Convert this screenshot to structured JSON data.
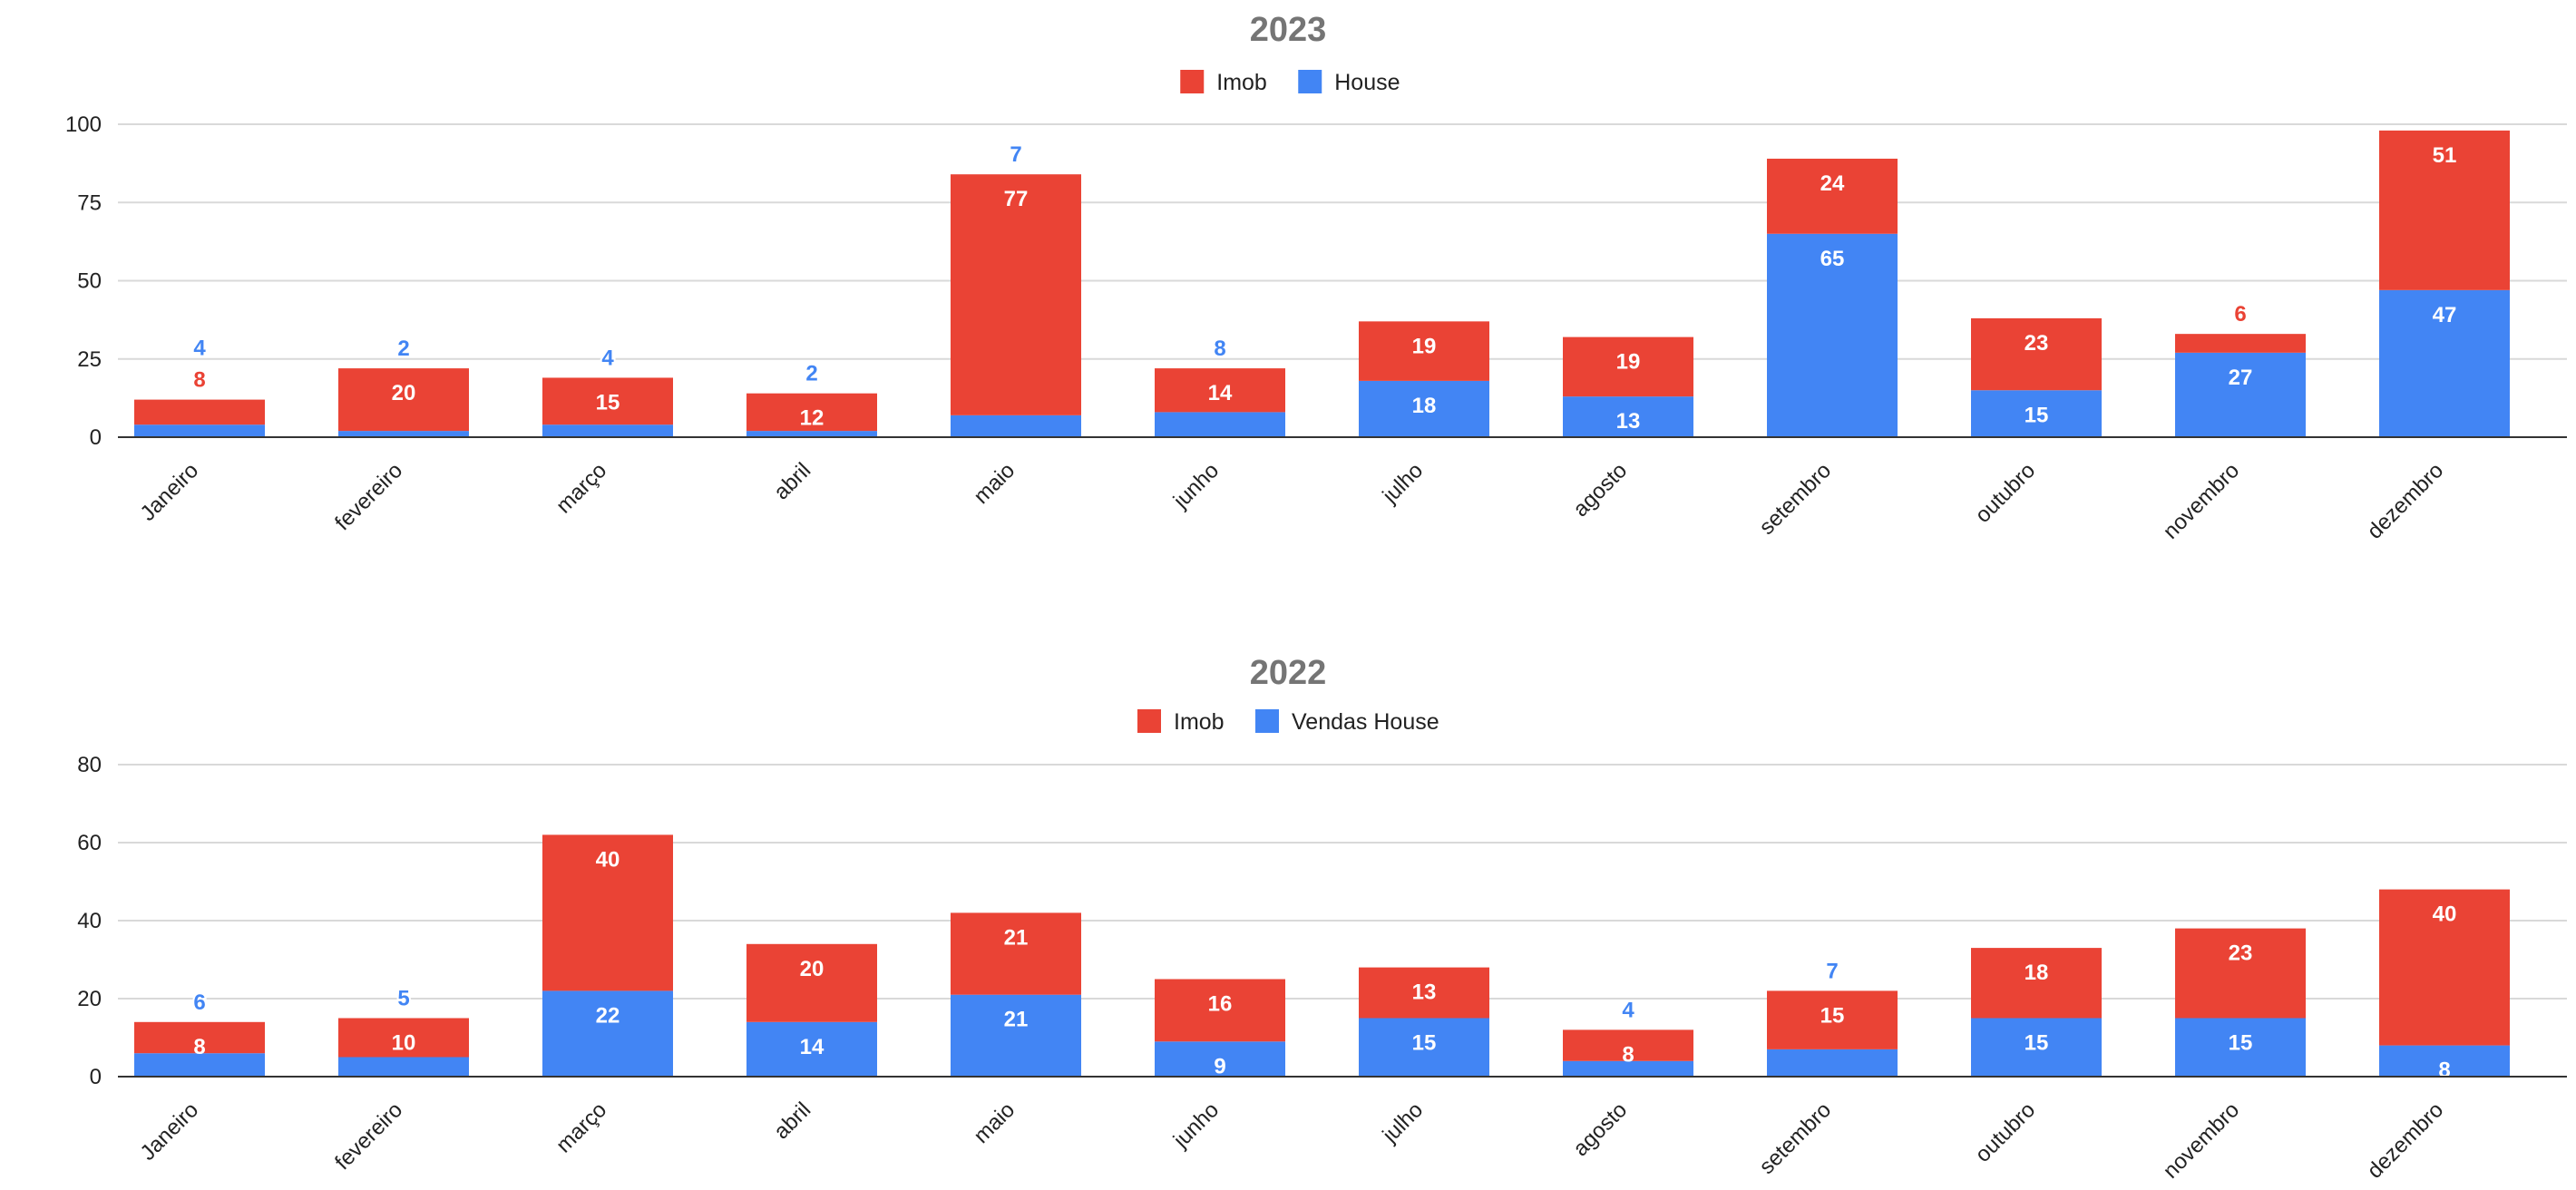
{
  "colors": {
    "imob": "#EA4335",
    "house": "#4285F4",
    "grid": "#d9d9d9",
    "axis": "#333333",
    "title": "#757575"
  },
  "chart_data": [
    {
      "type": "bar",
      "stacked": true,
      "title": "2023",
      "legend_position": "top",
      "categories": [
        "Janeiro",
        "fevereiro",
        "março",
        "abril",
        "maio",
        "junho",
        "julho",
        "agosto",
        "setembro",
        "outubro",
        "novembro",
        "dezembro"
      ],
      "series": [
        {
          "name": "House",
          "color": "#4285F4",
          "values": [
            4,
            2,
            4,
            2,
            7,
            8,
            18,
            13,
            65,
            15,
            27,
            47
          ]
        },
        {
          "name": "Imob",
          "color": "#EA4335",
          "values": [
            8,
            20,
            15,
            12,
            77,
            14,
            19,
            19,
            24,
            23,
            6,
            51
          ]
        }
      ],
      "legend_order": [
        "Imob",
        "House"
      ],
      "ylim": [
        0,
        100
      ],
      "yticks": [
        0,
        25,
        50,
        75,
        100
      ],
      "grid": true
    },
    {
      "type": "bar",
      "stacked": true,
      "title": "2022",
      "legend_position": "top",
      "categories": [
        "Janeiro",
        "fevereiro",
        "março",
        "abril",
        "maio",
        "junho",
        "julho",
        "agosto",
        "setembro",
        "outubro",
        "novembro",
        "dezembro"
      ],
      "series": [
        {
          "name": "Vendas House",
          "color": "#4285F4",
          "values": [
            6,
            5,
            22,
            14,
            21,
            9,
            15,
            4,
            7,
            15,
            15,
            8
          ]
        },
        {
          "name": "Imob",
          "color": "#EA4335",
          "values": [
            8,
            10,
            40,
            20,
            21,
            16,
            13,
            8,
            15,
            18,
            23,
            40
          ]
        }
      ],
      "legend_order": [
        "Imob",
        "Vendas House"
      ],
      "ylim": [
        0,
        80
      ],
      "yticks": [
        0,
        20,
        40,
        60,
        80
      ],
      "grid": true
    }
  ]
}
